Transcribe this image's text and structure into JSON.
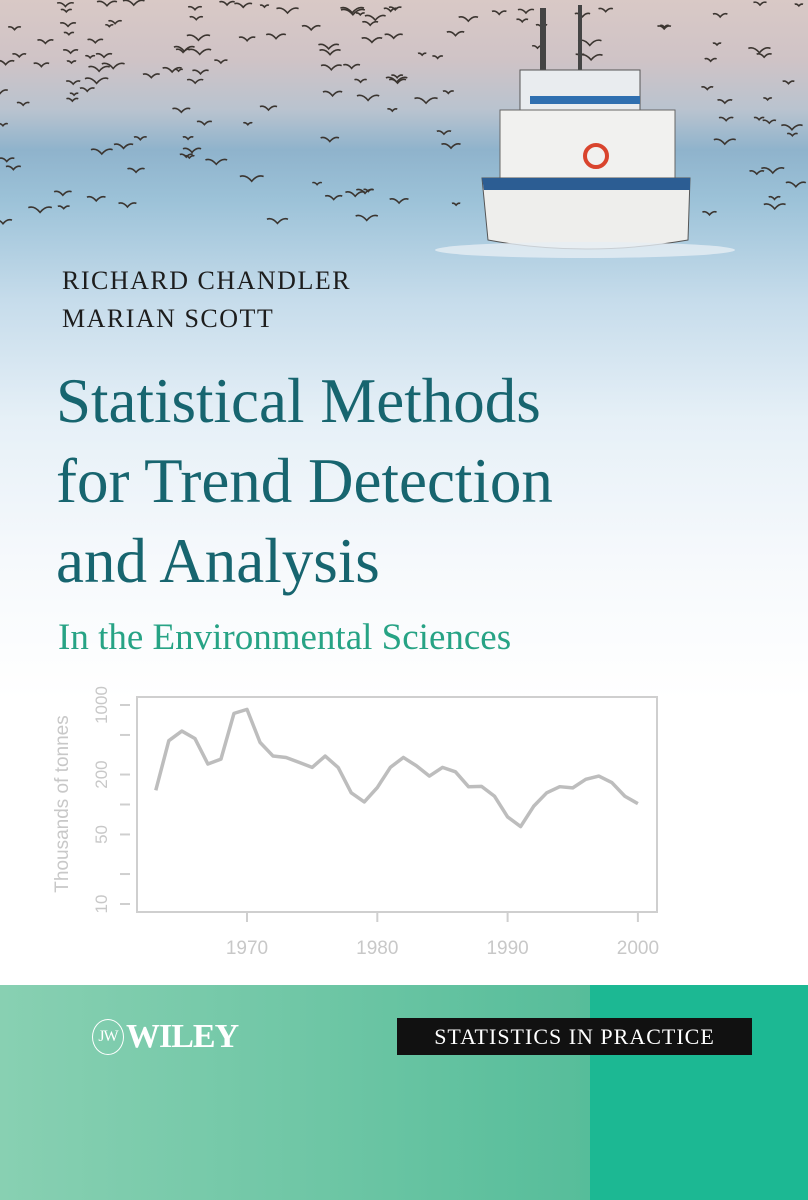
{
  "cover": {
    "authors": [
      "RICHARD CHANDLER",
      "MARIAN SCOTT"
    ],
    "title_lines": [
      "Statistical Methods",
      "for Trend Detection",
      "and Analysis"
    ],
    "subtitle": "In the Environmental Sciences",
    "publisher": "WILEY",
    "series": "STATISTICS IN PRACTICE",
    "colors": {
      "title": "#17656f",
      "subtitle": "#27a385",
      "band": "#56bd9a",
      "band_accent": "#1cb893",
      "series_box": "#111111"
    }
  },
  "chart_data": {
    "type": "line",
    "ylabel": "Thousands of tonnes",
    "xlabel": "",
    "y_scale": "log",
    "ylim": [
      10,
      1000
    ],
    "y_ticks": [
      10,
      20,
      50,
      100,
      200,
      500,
      1000
    ],
    "y_tick_labels": [
      "10",
      "",
      "50",
      "",
      "200",
      "",
      "1000"
    ],
    "xlim": [
      1962,
      2002
    ],
    "x_ticks": [
      "1970",
      "1980",
      "1990",
      "2000"
    ],
    "grid": false,
    "color": "#bdbdbd",
    "x": [
      1963,
      1964,
      1965,
      1966,
      1967,
      1968,
      1969,
      1970,
      1971,
      1972,
      1973,
      1974,
      1975,
      1976,
      1977,
      1978,
      1979,
      1980,
      1981,
      1982,
      1983,
      1984,
      1985,
      1986,
      1987,
      1988,
      1989,
      1990,
      1991,
      1992,
      1993,
      1994,
      1995,
      1996,
      1997,
      1998,
      1999,
      2000
    ],
    "y": [
      139,
      438,
      547,
      461,
      255,
      286,
      824,
      904,
      421,
      307,
      297,
      265,
      236,
      307,
      235,
      131,
      106,
      148,
      236,
      297,
      245,
      193,
      236,
      213,
      151,
      152,
      121,
      75,
      60,
      96,
      131,
      151,
      147,
      179,
      193,
      166,
      121,
      102
    ]
  }
}
